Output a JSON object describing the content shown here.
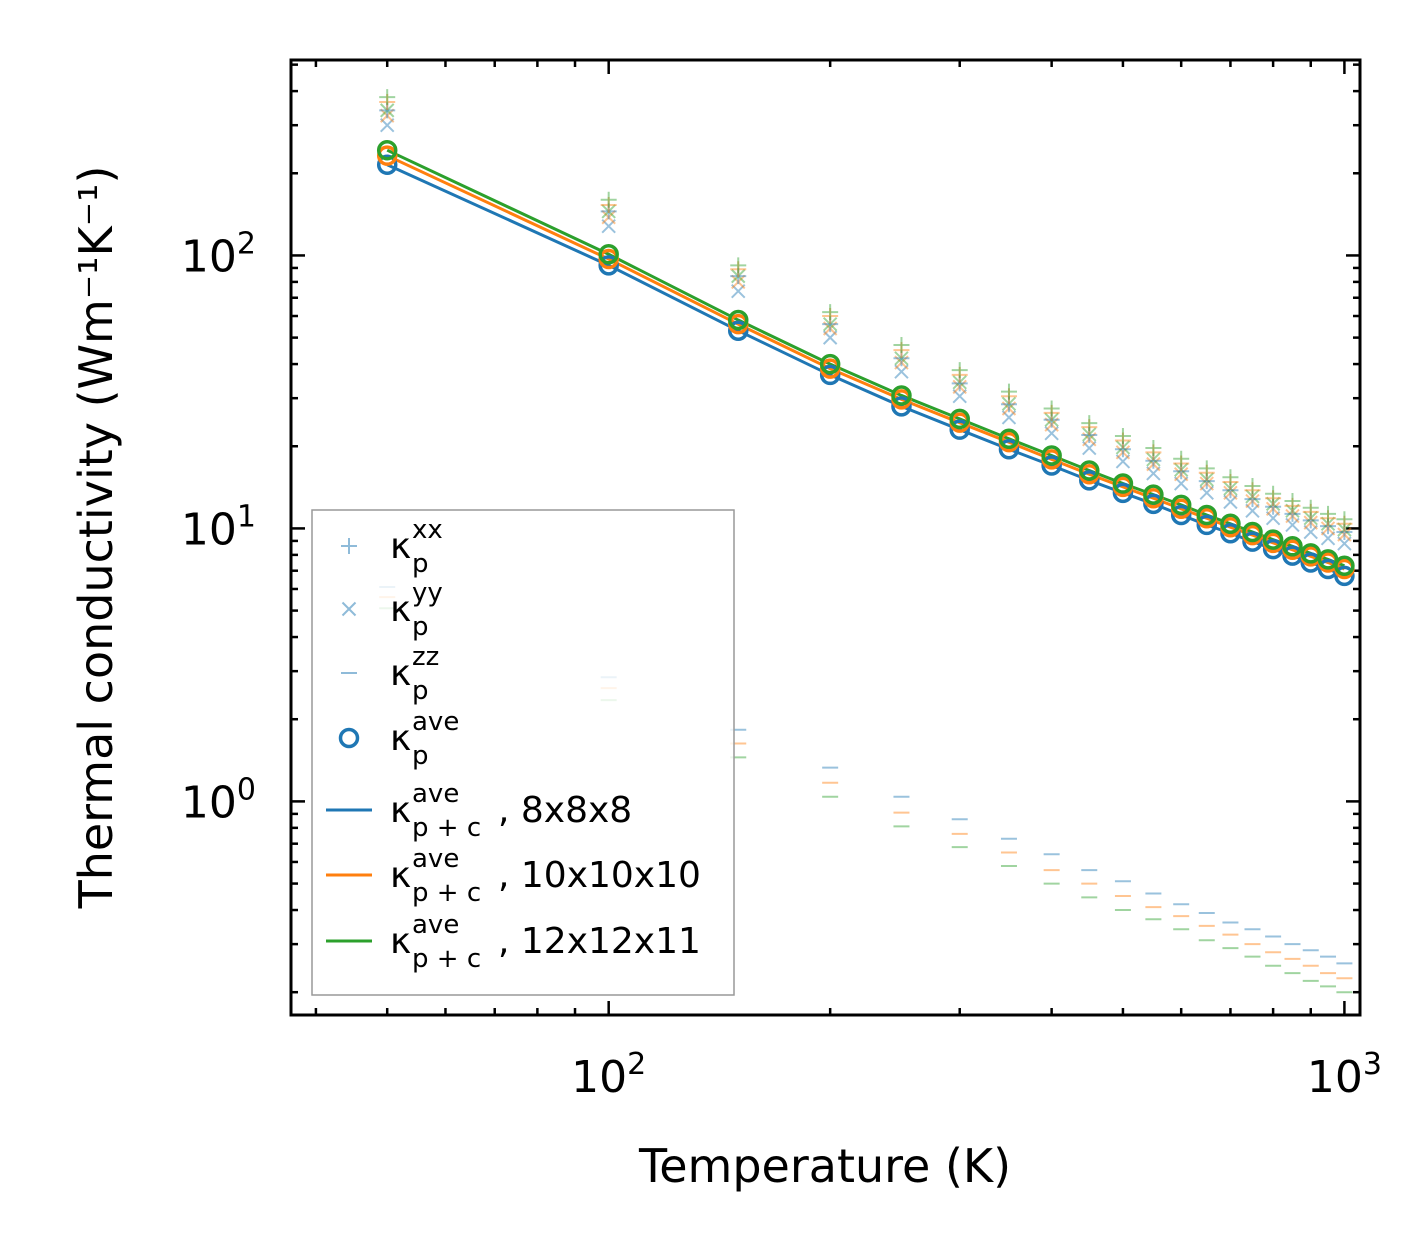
{
  "chart_data": {
    "type": "scatter",
    "title": "",
    "xlabel": "Temperature (K)",
    "ylabel": "Thermal conductivity (Wm⁻¹K⁻¹)",
    "xscale": "log",
    "yscale": "log",
    "xlim": [
      37,
      1050
    ],
    "ylim": [
      0.165,
      520
    ],
    "x_ticks": [
      {
        "base": "10",
        "exp": "2",
        "value": 100
      },
      {
        "base": "10",
        "exp": "3",
        "value": 1000
      }
    ],
    "y_ticks": [
      {
        "base": "10",
        "exp": "0",
        "value": 1
      },
      {
        "base": "10",
        "exp": "1",
        "value": 10
      },
      {
        "base": "10",
        "exp": "2",
        "value": 100
      }
    ],
    "x": [
      50,
      100,
      150,
      200,
      250,
      300,
      350,
      400,
      450,
      500,
      550,
      600,
      650,
      700,
      750,
      800,
      850,
      900,
      950,
      1000
    ],
    "grids": [
      "8x8x8",
      "10x10x10",
      "12x12x11"
    ],
    "colors": {
      "8x8x8": "#1f77b4",
      "10x10x10": "#ff7f0e",
      "12x12x11": "#2ca02c"
    },
    "series": [
      {
        "name": "κ_p^xx",
        "grid": "8x8x8",
        "marker": "plus",
        "values": [
          340,
          145,
          84,
          56,
          42,
          34,
          28.5,
          25,
          22,
          19.5,
          17.7,
          16.2,
          14.9,
          13.8,
          12.8,
          12.0,
          11.3,
          10.7,
          10.2,
          9.7
        ]
      },
      {
        "name": "κ_p^xx",
        "grid": "10x10x10",
        "marker": "plus",
        "values": [
          365,
          153,
          89,
          60,
          45,
          36.5,
          30.5,
          26.5,
          23.5,
          21,
          19,
          17.3,
          16.0,
          14.8,
          13.8,
          12.9,
          12.1,
          11.5,
          10.9,
          10.4
        ]
      },
      {
        "name": "κ_p^xx",
        "grid": "12x12x11",
        "marker": "plus",
        "values": [
          380,
          160,
          92,
          62,
          47,
          38,
          31.7,
          27.5,
          24.3,
          21.8,
          19.7,
          18.0,
          16.6,
          15.4,
          14.3,
          13.4,
          12.6,
          11.9,
          11.3,
          10.8
        ]
      },
      {
        "name": "κ_p^yy",
        "grid": "8x8x8",
        "marker": "x",
        "values": [
          300,
          128,
          74,
          50,
          37.5,
          30.5,
          25.5,
          22.3,
          19.7,
          17.6,
          15.9,
          14.6,
          13.5,
          12.5,
          11.6,
          10.9,
          10.3,
          9.7,
          9.2,
          8.8
        ]
      },
      {
        "name": "κ_p^yy",
        "grid": "10x10x10",
        "marker": "x",
        "values": [
          325,
          138,
          80,
          54,
          40.5,
          33,
          27.5,
          24,
          21.2,
          19.0,
          17.2,
          15.8,
          14.6,
          13.5,
          12.6,
          11.8,
          11.1,
          10.5,
          10.0,
          9.5
        ]
      },
      {
        "name": "κ_p^yy",
        "grid": "12x12x11",
        "marker": "x",
        "values": [
          340,
          145,
          84,
          56,
          42,
          34.3,
          28.6,
          25,
          22.1,
          19.8,
          17.9,
          16.4,
          15.1,
          14.0,
          13.1,
          12.3,
          11.6,
          10.9,
          10.4,
          9.9
        ]
      },
      {
        "name": "κ_p^zz",
        "grid": "8x8x8",
        "marker": "tick",
        "values": [
          6.1,
          2.85,
          1.83,
          1.33,
          1.04,
          0.86,
          0.73,
          0.64,
          0.56,
          0.51,
          0.46,
          0.42,
          0.39,
          0.36,
          0.34,
          0.32,
          0.3,
          0.285,
          0.27,
          0.255
        ]
      },
      {
        "name": "κ_p^zz",
        "grid": "10x10x10",
        "marker": "tick",
        "values": [
          5.6,
          2.6,
          1.63,
          1.17,
          0.91,
          0.76,
          0.65,
          0.56,
          0.5,
          0.45,
          0.41,
          0.38,
          0.35,
          0.325,
          0.3,
          0.28,
          0.265,
          0.25,
          0.235,
          0.225
        ]
      },
      {
        "name": "κ_p^zz",
        "grid": "12x12x11",
        "marker": "tick",
        "values": [
          5.1,
          2.35,
          1.45,
          1.04,
          0.81,
          0.68,
          0.58,
          0.5,
          0.445,
          0.4,
          0.37,
          0.34,
          0.31,
          0.29,
          0.27,
          0.25,
          0.235,
          0.22,
          0.21,
          0.2
        ]
      },
      {
        "name": "κ_p^ave",
        "grid": "8x8x8",
        "marker": "circle",
        "values": [
          215,
          92,
          53,
          36.5,
          28,
          23,
          19.5,
          17,
          15,
          13.5,
          12.3,
          11.2,
          10.3,
          9.6,
          8.95,
          8.4,
          7.95,
          7.5,
          7.1,
          6.7
        ]
      },
      {
        "name": "κ_p^ave",
        "grid": "10x10x10",
        "marker": "circle",
        "values": [
          232,
          97,
          56,
          38.5,
          29.7,
          24.4,
          20.7,
          17.9,
          15.8,
          14.2,
          12.9,
          11.8,
          10.9,
          10.1,
          9.45,
          8.85,
          8.35,
          7.9,
          7.5,
          7.1
        ]
      },
      {
        "name": "κ_p^ave",
        "grid": "12x12x11",
        "marker": "circle",
        "values": [
          243,
          101,
          58,
          40,
          30.7,
          25.2,
          21.3,
          18.5,
          16.3,
          14.6,
          13.3,
          12.2,
          11.2,
          10.4,
          9.7,
          9.1,
          8.6,
          8.1,
          7.7,
          7.3
        ]
      },
      {
        "name": "κ_p+c^ave, 8x8x8",
        "grid": "8x8x8",
        "marker": "line",
        "values": [
          215,
          92,
          53,
          36.5,
          28,
          23,
          19.5,
          17,
          15,
          13.5,
          12.3,
          11.2,
          10.3,
          9.6,
          8.95,
          8.4,
          7.95,
          7.5,
          7.1,
          6.7
        ]
      },
      {
        "name": "κ_p+c^ave, 10x10x10",
        "grid": "10x10x10",
        "marker": "line",
        "values": [
          232,
          97,
          56,
          38.5,
          29.7,
          24.4,
          20.7,
          17.9,
          15.8,
          14.2,
          12.9,
          11.8,
          10.9,
          10.1,
          9.45,
          8.85,
          8.35,
          7.9,
          7.5,
          7.1
        ]
      },
      {
        "name": "κ_p+c^ave, 12x12x11",
        "grid": "12x12x11",
        "marker": "line",
        "values": [
          243,
          101,
          58,
          40,
          30.7,
          25.2,
          21.3,
          18.5,
          16.3,
          14.6,
          13.3,
          12.2,
          11.2,
          10.4,
          9.7,
          9.1,
          8.6,
          8.1,
          7.7,
          7.3
        ]
      }
    ],
    "legend": {
      "position": "lower-left",
      "entries": [
        {
          "symbol": "κ",
          "sub": "p",
          "sup": "xx",
          "suffix": "",
          "marker": "plus",
          "color": "#1f77b4"
        },
        {
          "symbol": "κ",
          "sub": "p",
          "sup": "yy",
          "suffix": "",
          "marker": "x",
          "color": "#1f77b4"
        },
        {
          "symbol": "κ",
          "sub": "p",
          "sup": "zz",
          "suffix": "",
          "marker": "tick",
          "color": "#1f77b4"
        },
        {
          "symbol": "κ",
          "sub": "p",
          "sup": "ave",
          "suffix": "",
          "marker": "circle",
          "color": "#1f77b4"
        },
        {
          "symbol": "κ",
          "sub": "p + c",
          "sup": "ave",
          "suffix": ", 8x8x8",
          "marker": "line",
          "color": "#1f77b4"
        },
        {
          "symbol": "κ",
          "sub": "p + c",
          "sup": "ave",
          "suffix": ", 10x10x10",
          "marker": "line",
          "color": "#ff7f0e"
        },
        {
          "symbol": "κ",
          "sub": "p + c",
          "sup": "ave",
          "suffix": ", 12x12x11",
          "marker": "line",
          "color": "#2ca02c"
        }
      ]
    }
  }
}
